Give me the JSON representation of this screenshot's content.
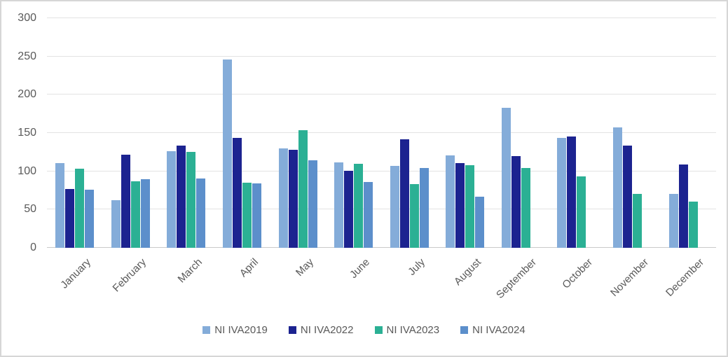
{
  "chart_data": {
    "type": "bar",
    "title": "",
    "xlabel": "",
    "ylabel": "",
    "categories": [
      "January",
      "February",
      "March",
      "April",
      "May",
      "June",
      "July",
      "August",
      "September",
      "October",
      "November",
      "December"
    ],
    "series": [
      {
        "name": "NI IVA2019",
        "color": "#84ACD9",
        "values": [
          111,
          62,
          126,
          246,
          130,
          112,
          107,
          121,
          183,
          144,
          157,
          70
        ]
      },
      {
        "name": "NI IVA2022",
        "color": "#1C2390",
        "values": [
          77,
          122,
          134,
          144,
          128,
          101,
          142,
          111,
          120,
          145,
          134,
          109
        ]
      },
      {
        "name": "NI IVA2023",
        "color": "#2BB094",
        "values": [
          103,
          87,
          125,
          85,
          154,
          110,
          83,
          108,
          104,
          93,
          70,
          60
        ]
      },
      {
        "name": "NI IVA2024",
        "color": "#5C8FCB",
        "values": [
          76,
          90,
          91,
          84,
          114,
          86,
          104,
          67,
          null,
          null,
          null,
          null
        ]
      }
    ],
    "ylim": [
      0,
      300
    ],
    "ytick_step": 50,
    "grid": true,
    "legend_position": "bottom",
    "colors": {
      "gridline": "#e3e3e3",
      "axis_line": "#c9c9c9",
      "text": "#595959",
      "background": "#ffffff"
    }
  }
}
